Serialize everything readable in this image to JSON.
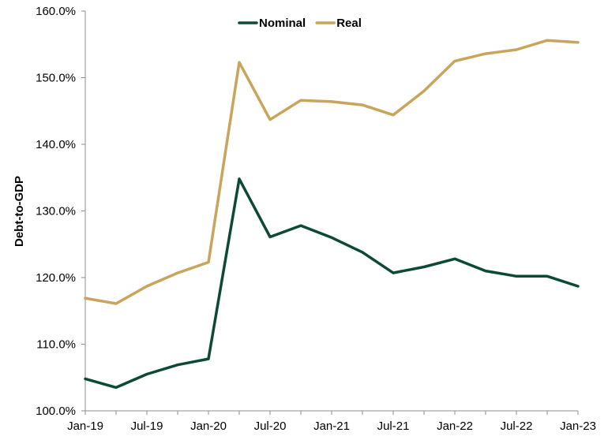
{
  "chart_data": {
    "type": "line",
    "ylabel": "Debt-to-GDP",
    "xlabel": "",
    "ylim": [
      100,
      160
    ],
    "y_ticks": [
      "100.0%",
      "110.0%",
      "120.0%",
      "130.0%",
      "140.0%",
      "150.0%",
      "160.0%"
    ],
    "x_tick_labels": [
      "Jan-19",
      "Jul-19",
      "Jan-20",
      "Jul-20",
      "Jan-21",
      "Jul-21",
      "Jan-22",
      "Jul-22",
      "Jan-23"
    ],
    "x": [
      "Jan-19",
      "Apr-19",
      "Jul-19",
      "Oct-19",
      "Jan-20",
      "Apr-20",
      "Jul-20",
      "Oct-20",
      "Jan-21",
      "Apr-21",
      "Jul-21",
      "Oct-21",
      "Jan-22",
      "Apr-22",
      "Jul-22",
      "Oct-22",
      "Jan-23"
    ],
    "series": [
      {
        "name": "Nominal",
        "color": "#0d4a36",
        "values": [
          104.8,
          103.5,
          105.5,
          106.9,
          107.8,
          134.8,
          126.1,
          127.8,
          126.0,
          123.8,
          120.7,
          121.6,
          122.8,
          121.0,
          120.2,
          120.2,
          118.7
        ]
      },
      {
        "name": "Real",
        "color": "#c9a45c",
        "values": [
          116.9,
          116.1,
          118.7,
          120.7,
          122.3,
          152.3,
          143.7,
          146.6,
          146.4,
          145.9,
          144.4,
          148.0,
          152.5,
          153.6,
          154.2,
          155.6,
          155.3
        ]
      }
    ],
    "legend_position": "top-center",
    "grid": false
  }
}
